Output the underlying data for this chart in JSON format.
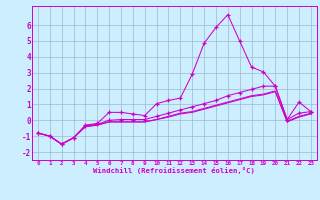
{
  "xlabel": "Windchill (Refroidissement éolien,°C)",
  "bg_color": "#cceeff",
  "line_color": "#cc00cc",
  "grid_color": "#99bbcc",
  "xlim": [
    -0.5,
    23.5
  ],
  "ylim": [
    -2.5,
    7.2
  ],
  "xticks": [
    0,
    1,
    2,
    3,
    4,
    5,
    6,
    7,
    8,
    9,
    10,
    11,
    12,
    13,
    14,
    15,
    16,
    17,
    18,
    19,
    20,
    21,
    22,
    23
  ],
  "yticks": [
    -2,
    -1,
    0,
    1,
    2,
    3,
    4,
    5,
    6
  ],
  "series1_x": [
    0,
    1,
    2,
    3,
    4,
    5,
    6,
    7,
    8,
    9,
    10,
    11,
    12,
    13,
    14,
    15,
    16,
    17,
    18,
    19,
    20,
    21,
    22,
    23
  ],
  "series1_y": [
    -0.8,
    -1.0,
    -1.5,
    -1.1,
    -0.3,
    -0.2,
    0.5,
    0.5,
    0.4,
    0.3,
    1.05,
    1.25,
    1.4,
    2.9,
    4.85,
    5.85,
    6.65,
    5.0,
    3.35,
    3.05,
    2.15,
    0.05,
    1.15,
    0.55
  ],
  "series2_x": [
    0,
    1,
    2,
    3,
    4,
    5,
    6,
    7,
    8,
    9,
    10,
    11,
    12,
    13,
    14,
    15,
    16,
    17,
    18,
    19,
    20,
    21,
    22,
    23
  ],
  "series2_y": [
    -0.8,
    -1.0,
    -1.5,
    -1.1,
    -0.35,
    -0.25,
    0.0,
    0.05,
    0.05,
    0.05,
    0.25,
    0.45,
    0.65,
    0.85,
    1.05,
    1.25,
    1.55,
    1.75,
    1.95,
    2.15,
    2.15,
    0.05,
    0.45,
    0.55
  ],
  "series3_x": [
    0,
    1,
    2,
    3,
    4,
    5,
    6,
    7,
    8,
    9,
    10,
    11,
    12,
    13,
    14,
    15,
    16,
    17,
    18,
    19,
    20,
    21,
    22,
    23
  ],
  "series3_y": [
    -0.8,
    -1.0,
    -1.5,
    -1.1,
    -0.4,
    -0.3,
    -0.1,
    -0.1,
    -0.1,
    -0.1,
    0.05,
    0.25,
    0.45,
    0.55,
    0.75,
    0.95,
    1.15,
    1.35,
    1.55,
    1.65,
    1.85,
    -0.05,
    0.25,
    0.45
  ],
  "series4_x": [
    0,
    1,
    2,
    3,
    4,
    5,
    6,
    7,
    8,
    9,
    10,
    11,
    12,
    13,
    14,
    15,
    16,
    17,
    18,
    19,
    20,
    21,
    22,
    23
  ],
  "series4_y": [
    -0.8,
    -1.0,
    -1.5,
    -1.1,
    -0.4,
    -0.3,
    -0.1,
    -0.1,
    -0.1,
    -0.1,
    0.05,
    0.2,
    0.4,
    0.5,
    0.7,
    0.9,
    1.1,
    1.3,
    1.5,
    1.6,
    1.8,
    -0.1,
    0.2,
    0.4
  ]
}
